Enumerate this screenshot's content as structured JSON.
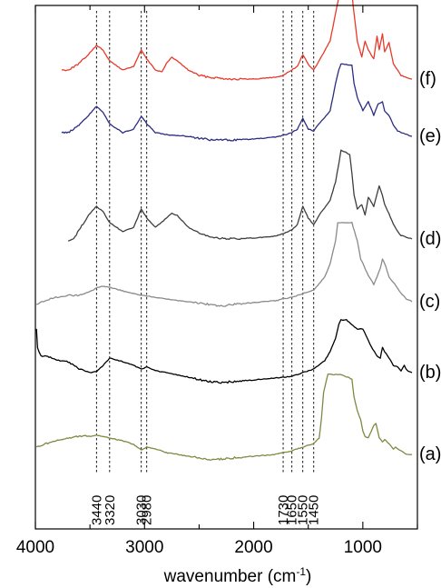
{
  "chart_data": {
    "type": "line",
    "xlabel": "wavenumber (cm",
    "xlabel_sup": "-1",
    "xlabel_end": ")",
    "xlim": [
      4000,
      500
    ],
    "x_ticks": [
      4000,
      3000,
      2000,
      1000
    ],
    "x_tick_labels": [
      "4000",
      "3000",
      "2000",
      "1000"
    ],
    "y_axis_shown": false,
    "legend": "none",
    "grid": false,
    "reference_lines": [
      3440,
      3320,
      3030,
      2980,
      1730,
      1650,
      1550,
      1450
    ],
    "reference_labels": [
      "3440",
      "3320",
      "3030",
      "2980",
      "1730",
      "1650",
      "1550",
      "1450"
    ],
    "series": [
      {
        "name": "(f)",
        "color": "#e8392a",
        "offset": 85,
        "points": [
          [
            3760,
            8
          ],
          [
            3700,
            8
          ],
          [
            3600,
            15
          ],
          [
            3500,
            27
          ],
          [
            3440,
            35
          ],
          [
            3380,
            30
          ],
          [
            3320,
            18
          ],
          [
            3200,
            8
          ],
          [
            3100,
            12
          ],
          [
            3030,
            30
          ],
          [
            2980,
            20
          ],
          [
            2900,
            8
          ],
          [
            2840,
            6
          ],
          [
            2800,
            15
          ],
          [
            2750,
            22
          ],
          [
            2700,
            18
          ],
          [
            2600,
            8
          ],
          [
            2500,
            2
          ],
          [
            2400,
            0
          ],
          [
            2200,
            -2
          ],
          [
            2000,
            -2
          ],
          [
            1800,
            0
          ],
          [
            1730,
            2
          ],
          [
            1680,
            6
          ],
          [
            1650,
            8
          ],
          [
            1600,
            12
          ],
          [
            1550,
            25
          ],
          [
            1500,
            14
          ],
          [
            1450,
            8
          ],
          [
            1400,
            18
          ],
          [
            1300,
            40
          ],
          [
            1250,
            70
          ],
          [
            1220,
            88
          ],
          [
            1200,
            95
          ],
          [
            1100,
            95
          ],
          [
            1090,
            80
          ],
          [
            1070,
            60
          ],
          [
            1050,
            40
          ],
          [
            1010,
            22
          ],
          [
            980,
            40
          ],
          [
            950,
            30
          ],
          [
            900,
            20
          ],
          [
            870,
            45
          ],
          [
            850,
            30
          ],
          [
            820,
            48
          ],
          [
            800,
            28
          ],
          [
            760,
            38
          ],
          [
            720,
            15
          ],
          [
            680,
            8
          ],
          [
            650,
            2
          ],
          [
            600,
            0
          ],
          [
            550,
            -2
          ]
        ]
      },
      {
        "name": "(e)",
        "color": "#2b2c82",
        "offset": 152,
        "points": [
          [
            3760,
            6
          ],
          [
            3700,
            6
          ],
          [
            3600,
            14
          ],
          [
            3500,
            27
          ],
          [
            3440,
            35
          ],
          [
            3380,
            28
          ],
          [
            3320,
            16
          ],
          [
            3200,
            6
          ],
          [
            3100,
            10
          ],
          [
            3030,
            24
          ],
          [
            2980,
            16
          ],
          [
            2900,
            6
          ],
          [
            2800,
            4
          ],
          [
            2600,
            2
          ],
          [
            2400,
            -2
          ],
          [
            2200,
            -2
          ],
          [
            2000,
            -1
          ],
          [
            1800,
            1
          ],
          [
            1730,
            3
          ],
          [
            1650,
            6
          ],
          [
            1600,
            10
          ],
          [
            1550,
            22
          ],
          [
            1500,
            10
          ],
          [
            1450,
            8
          ],
          [
            1400,
            16
          ],
          [
            1300,
            30
          ],
          [
            1250,
            60
          ],
          [
            1220,
            75
          ],
          [
            1200,
            82
          ],
          [
            1100,
            80
          ],
          [
            1080,
            60
          ],
          [
            1050,
            45
          ],
          [
            1000,
            30
          ],
          [
            950,
            40
          ],
          [
            900,
            25
          ],
          [
            860,
            38
          ],
          [
            820,
            40
          ],
          [
            800,
            30
          ],
          [
            760,
            25
          ],
          [
            720,
            14
          ],
          [
            680,
            8
          ],
          [
            600,
            4
          ],
          [
            550,
            2
          ]
        ]
      },
      {
        "name": "(d)",
        "color": "#3e3e3e",
        "offset": 265,
        "points": [
          [
            3700,
            0
          ],
          [
            3650,
            2
          ],
          [
            3600,
            12
          ],
          [
            3500,
            30
          ],
          [
            3440,
            38
          ],
          [
            3380,
            32
          ],
          [
            3320,
            20
          ],
          [
            3200,
            10
          ],
          [
            3100,
            15
          ],
          [
            3030,
            35
          ],
          [
            2980,
            25
          ],
          [
            2900,
            15
          ],
          [
            2800,
            25
          ],
          [
            2750,
            30
          ],
          [
            2700,
            28
          ],
          [
            2600,
            15
          ],
          [
            2500,
            8
          ],
          [
            2400,
            4
          ],
          [
            2300,
            3
          ],
          [
            2200,
            2
          ],
          [
            2000,
            3
          ],
          [
            1800,
            5
          ],
          [
            1730,
            8
          ],
          [
            1650,
            12
          ],
          [
            1600,
            18
          ],
          [
            1550,
            38
          ],
          [
            1500,
            25
          ],
          [
            1450,
            18
          ],
          [
            1400,
            28
          ],
          [
            1300,
            45
          ],
          [
            1250,
            65
          ],
          [
            1220,
            85
          ],
          [
            1200,
            100
          ],
          [
            1120,
            95
          ],
          [
            1100,
            75
          ],
          [
            1080,
            50
          ],
          [
            1050,
            35
          ],
          [
            1010,
            40
          ],
          [
            980,
            28
          ],
          [
            950,
            48
          ],
          [
            900,
            38
          ],
          [
            850,
            60
          ],
          [
            820,
            50
          ],
          [
            800,
            40
          ],
          [
            760,
            30
          ],
          [
            720,
            18
          ],
          [
            680,
            10
          ],
          [
            650,
            6
          ],
          [
            600,
            4
          ],
          [
            550,
            2
          ]
        ]
      },
      {
        "name": "(c)",
        "color": "#8a8a8a",
        "offset": 335,
        "points": [
          [
            3990,
            0
          ],
          [
            3900,
            5
          ],
          [
            3800,
            8
          ],
          [
            3700,
            10
          ],
          [
            3600,
            10
          ],
          [
            3500,
            14
          ],
          [
            3440,
            18
          ],
          [
            3380,
            20
          ],
          [
            3320,
            19
          ],
          [
            3200,
            15
          ],
          [
            3100,
            12
          ],
          [
            3030,
            10
          ],
          [
            2900,
            8
          ],
          [
            2800,
            6
          ],
          [
            2600,
            3
          ],
          [
            2400,
            0
          ],
          [
            2300,
            -2
          ],
          [
            2200,
            0
          ],
          [
            2000,
            2
          ],
          [
            1800,
            4
          ],
          [
            1730,
            6
          ],
          [
            1650,
            8
          ],
          [
            1550,
            12
          ],
          [
            1450,
            16
          ],
          [
            1350,
            30
          ],
          [
            1300,
            45
          ],
          [
            1250,
            70
          ],
          [
            1230,
            90
          ],
          [
            1200,
            90
          ],
          [
            1100,
            90
          ],
          [
            1050,
            70
          ],
          [
            1020,
            50
          ],
          [
            1000,
            45
          ],
          [
            950,
            32
          ],
          [
            900,
            22
          ],
          [
            870,
            30
          ],
          [
            840,
            40
          ],
          [
            820,
            50
          ],
          [
            790,
            42
          ],
          [
            760,
            30
          ],
          [
            720,
            24
          ],
          [
            680,
            18
          ],
          [
            650,
            12
          ],
          [
            600,
            6
          ],
          [
            550,
            3
          ]
        ]
      },
      {
        "name": "(b)",
        "color": "#000000",
        "offset": 412,
        "points": [
          [
            3990,
            50
          ],
          [
            3980,
            30
          ],
          [
            3950,
            20
          ],
          [
            3900,
            20
          ],
          [
            3800,
            16
          ],
          [
            3700,
            14
          ],
          [
            3600,
            6
          ],
          [
            3500,
            2
          ],
          [
            3440,
            3
          ],
          [
            3380,
            10
          ],
          [
            3320,
            18
          ],
          [
            3200,
            14
          ],
          [
            3100,
            10
          ],
          [
            3030,
            6
          ],
          [
            2980,
            8
          ],
          [
            2900,
            4
          ],
          [
            2800,
            2
          ],
          [
            2600,
            -3
          ],
          [
            2400,
            -8
          ],
          [
            2300,
            -9
          ],
          [
            2200,
            -8
          ],
          [
            2000,
            -6
          ],
          [
            1800,
            -4
          ],
          [
            1730,
            -3
          ],
          [
            1650,
            -2
          ],
          [
            1550,
            2
          ],
          [
            1450,
            6
          ],
          [
            1350,
            15
          ],
          [
            1300,
            25
          ],
          [
            1250,
            40
          ],
          [
            1220,
            55
          ],
          [
            1200,
            60
          ],
          [
            1150,
            60
          ],
          [
            1100,
            55
          ],
          [
            1050,
            50
          ],
          [
            1000,
            50
          ],
          [
            960,
            40
          ],
          [
            920,
            30
          ],
          [
            870,
            20
          ],
          [
            840,
            18
          ],
          [
            820,
            30
          ],
          [
            800,
            25
          ],
          [
            760,
            18
          ],
          [
            720,
            10
          ],
          [
            680,
            8
          ],
          [
            650,
            4
          ],
          [
            620,
            10
          ],
          [
            600,
            5
          ],
          [
            550,
            2
          ]
        ]
      },
      {
        "name": "(a)",
        "color": "#7e8a42",
        "offset": 492,
        "points": [
          [
            3990,
            0
          ],
          [
            3900,
            4
          ],
          [
            3800,
            8
          ],
          [
            3700,
            10
          ],
          [
            3600,
            12
          ],
          [
            3500,
            12
          ],
          [
            3440,
            13
          ],
          [
            3380,
            12
          ],
          [
            3320,
            10
          ],
          [
            3200,
            7
          ],
          [
            3100,
            3
          ],
          [
            3030,
            -3
          ],
          [
            2980,
            0
          ],
          [
            2900,
            -2
          ],
          [
            2800,
            -6
          ],
          [
            2600,
            -10
          ],
          [
            2500,
            -12
          ],
          [
            2400,
            -14
          ],
          [
            2300,
            -13
          ],
          [
            2200,
            -12
          ],
          [
            2000,
            -10
          ],
          [
            1800,
            -8
          ],
          [
            1730,
            -6
          ],
          [
            1650,
            -4
          ],
          [
            1550,
            0
          ],
          [
            1450,
            4
          ],
          [
            1400,
            10
          ],
          [
            1380,
            30
          ],
          [
            1360,
            60
          ],
          [
            1320,
            80
          ],
          [
            1300,
            80
          ],
          [
            1200,
            80
          ],
          [
            1100,
            75
          ],
          [
            1080,
            55
          ],
          [
            1050,
            40
          ],
          [
            1020,
            30
          ],
          [
            1000,
            18
          ],
          [
            980,
            12
          ],
          [
            950,
            10
          ],
          [
            900,
            24
          ],
          [
            880,
            26
          ],
          [
            850,
            10
          ],
          [
            820,
            6
          ],
          [
            800,
            8
          ],
          [
            760,
            4
          ],
          [
            720,
            -2
          ],
          [
            700,
            0
          ],
          [
            650,
            -4
          ],
          [
            600,
            -8
          ],
          [
            550,
            -8
          ]
        ]
      }
    ]
  }
}
